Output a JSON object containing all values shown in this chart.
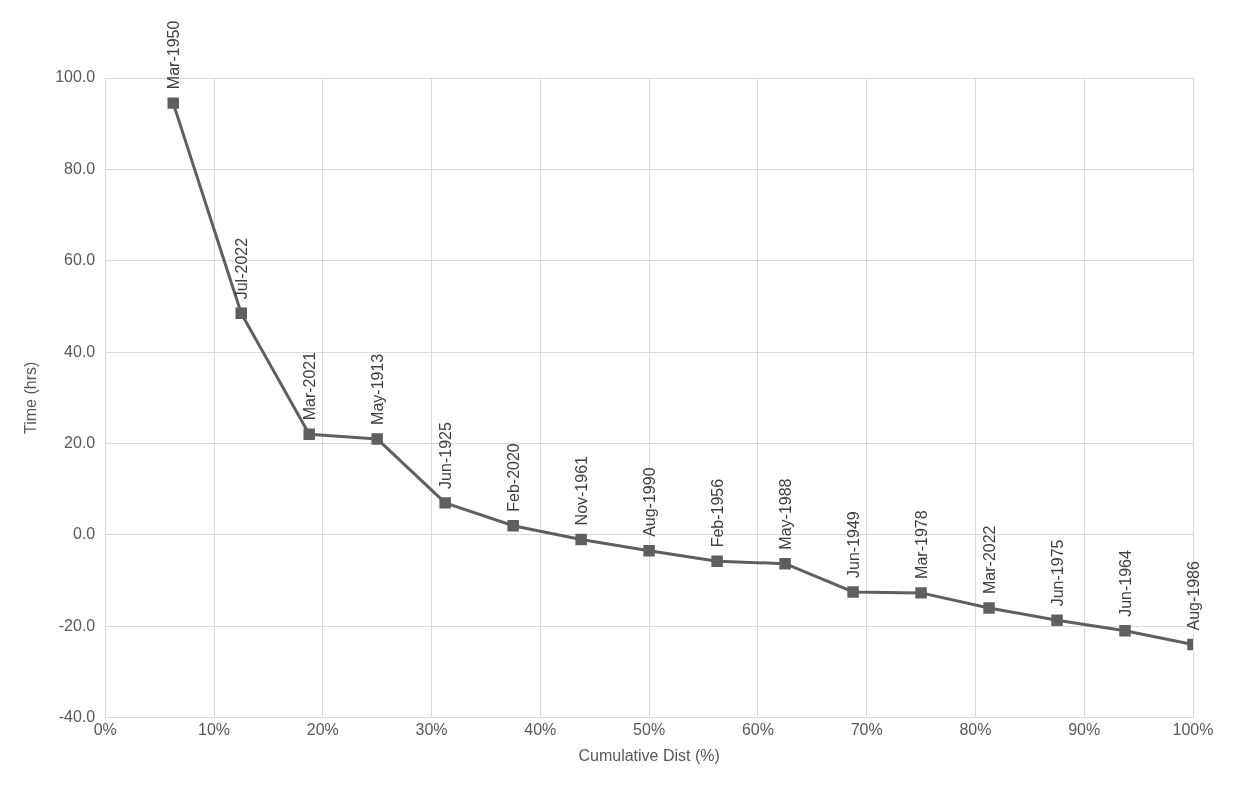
{
  "chart_data": {
    "type": "line",
    "xlabel": "Cumulative Dist (%)",
    "ylabel": "Time (hrs)",
    "x": [
      6.25,
      12.5,
      18.75,
      25,
      31.25,
      37.5,
      43.75,
      50,
      56.25,
      62.5,
      68.75,
      75,
      81.25,
      87.5,
      93.75,
      100
    ],
    "series": [
      {
        "color": "#5f5f5f",
        "values": [
          94.5,
          48.5,
          22,
          21,
          7,
          2,
          -1,
          -3.5,
          -5.8,
          -6.3,
          -12.5,
          -12.7,
          -16,
          -18.7,
          -21,
          -24
        ]
      }
    ],
    "xlim": [
      0,
      100
    ],
    "xticks": [
      {
        "value": 0,
        "label": "0%"
      },
      {
        "value": 10,
        "label": "10%"
      },
      {
        "value": 20,
        "label": "20%"
      },
      {
        "value": 30,
        "label": "30%"
      },
      {
        "value": 40,
        "label": "40%"
      },
      {
        "value": 50,
        "label": "50%"
      },
      {
        "value": 60,
        "label": "60%"
      },
      {
        "value": 70,
        "label": "70%"
      },
      {
        "value": 80,
        "label": "80%"
      },
      {
        "value": 90,
        "label": "90%"
      },
      {
        "value": 100,
        "label": "100%"
      }
    ],
    "ylim": [
      -40,
      100
    ],
    "yticks": [
      {
        "value": -40,
        "label": "-40.0"
      },
      {
        "value": -20,
        "label": "-20.0"
      },
      {
        "value": 0,
        "label": "0.0"
      },
      {
        "value": 20,
        "label": "20.0"
      },
      {
        "value": 40,
        "label": "40.0"
      },
      {
        "value": 60,
        "label": "60.0"
      },
      {
        "value": 80,
        "label": "80.0"
      },
      {
        "value": 100,
        "label": "100.0"
      }
    ],
    "grid": true,
    "marker": "square",
    "line_style": "solid",
    "legend": false,
    "annotations": [
      {
        "text": "Mar-1950",
        "x": 6.25,
        "y": 94.5
      },
      {
        "text": "Jul-2022",
        "x": 12.5,
        "y": 48.5
      },
      {
        "text": "Mar-2021",
        "x": 18.75,
        "y": 22
      },
      {
        "text": "May-1913",
        "x": 25,
        "y": 21
      },
      {
        "text": "Jun-1925",
        "x": 31.25,
        "y": 7
      },
      {
        "text": "Feb-2020",
        "x": 37.5,
        "y": 2
      },
      {
        "text": "Nov-1961",
        "x": 43.75,
        "y": -1
      },
      {
        "text": "Aug-1990",
        "x": 50,
        "y": -3.5
      },
      {
        "text": "Feb-1956",
        "x": 56.25,
        "y": -5.8
      },
      {
        "text": "May-1988",
        "x": 62.5,
        "y": -6.3
      },
      {
        "text": "Jun-1949",
        "x": 68.75,
        "y": -12.5
      },
      {
        "text": "Mar-1978",
        "x": 75,
        "y": -12.7
      },
      {
        "text": "Mar-2022",
        "x": 81.25,
        "y": -16
      },
      {
        "text": "Jun-1975",
        "x": 87.5,
        "y": -18.7
      },
      {
        "text": "Jun-1964",
        "x": 93.75,
        "y": -21
      },
      {
        "text": "Aug-1986",
        "x": 100,
        "y": -24
      }
    ]
  }
}
